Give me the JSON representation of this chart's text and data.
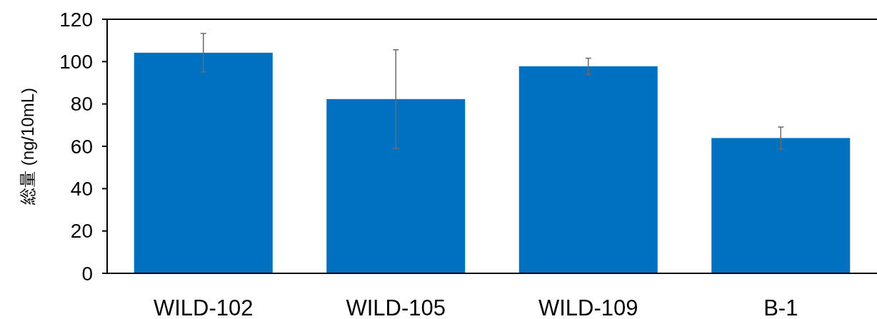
{
  "chart_data": {
    "type": "bar",
    "ylabel": "総量 (ng/10mL)",
    "categories": [
      "WILD-102",
      "WILD-105",
      "WILD-109",
      "B-1"
    ],
    "values": [
      104.2,
      82.3,
      97.8,
      63.9
    ],
    "errors": [
      9.1,
      23.3,
      3.8,
      5.2
    ],
    "color": "#0070c0",
    "ylim": [
      0,
      120
    ],
    "yticks": [
      0,
      20,
      40,
      60,
      80,
      100,
      120
    ]
  }
}
